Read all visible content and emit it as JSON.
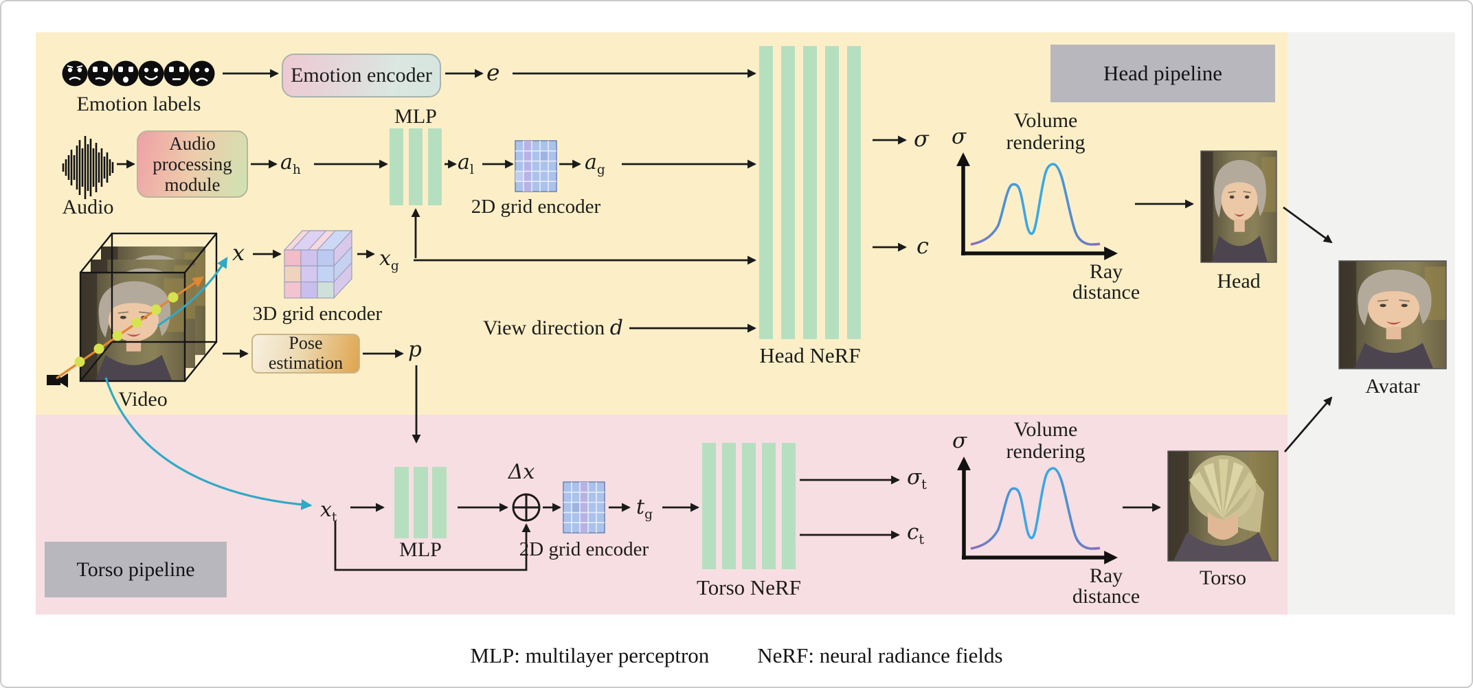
{
  "head_pipeline": {
    "region_label": "Head pipeline",
    "emotion": {
      "icons_label": "Emotion labels",
      "icons": [
        "angry-face",
        "displeased-face",
        "surprised-face",
        "happy-face",
        "neutral-face",
        "sad-face"
      ],
      "encoder_label": "Emotion encoder",
      "output_symbol": "e"
    },
    "audio": {
      "label": "Audio",
      "module_lines": [
        "Audio",
        "processing",
        "module"
      ],
      "hidden_feature": "a_h",
      "mlp_label": "MLP",
      "local_feature": "a_l",
      "grid_label": "2D grid encoder",
      "grid_feature": "a_g"
    },
    "video": {
      "label": "Video",
      "position_symbol": "x",
      "grid3d_label": "3D grid encoder",
      "grid_feature": "x_g",
      "pose_lines": [
        "Pose",
        "estimation"
      ],
      "pose_output": "p"
    },
    "view_direction": {
      "text": "View direction ",
      "symbol": "d"
    },
    "nerf_label": "Head NeRF",
    "outputs": {
      "density": "σ",
      "color": "c"
    },
    "volume": {
      "title_lines": [
        "Volume",
        "rendering"
      ],
      "y_axis": "σ",
      "x_axis_lines": [
        "Ray",
        "distance"
      ]
    },
    "result_label": "Head"
  },
  "torso_pipeline": {
    "region_label": "Torso pipeline",
    "input_symbol": "x_t",
    "mlp_label": "MLP",
    "delta_symbol": "Δx",
    "grid_label": "2D grid encoder",
    "grid_feature": "t_g",
    "nerf_label": "Torso NeRF",
    "outputs": {
      "density": "σ_t",
      "color": "c_t"
    },
    "volume": {
      "title_lines": [
        "Volume",
        "rendering"
      ],
      "y_axis": "σ",
      "x_axis_lines": [
        "Ray",
        "distance"
      ]
    },
    "result_label": "Torso"
  },
  "avatar_label": "Avatar",
  "caption": {
    "mlp": "MLP: multilayer perceptron",
    "nerf": "NeRF: neural radiance fields"
  },
  "colors": {
    "head_region": "#fcefc7",
    "torso_region": "#f7dee2",
    "side_panel": "#f2f2f1",
    "section_label_bg": "#b7b7bd",
    "nerf_bar": "#b6dfc0",
    "grid_fill": "#aac2ec",
    "ray": "#e2862f",
    "sample_dot": "#d6e34e",
    "camera_ray_curve": "#2fa9c6",
    "density_curve_ends": "#8a70b8",
    "density_curve_peak": "#35a9e6"
  }
}
